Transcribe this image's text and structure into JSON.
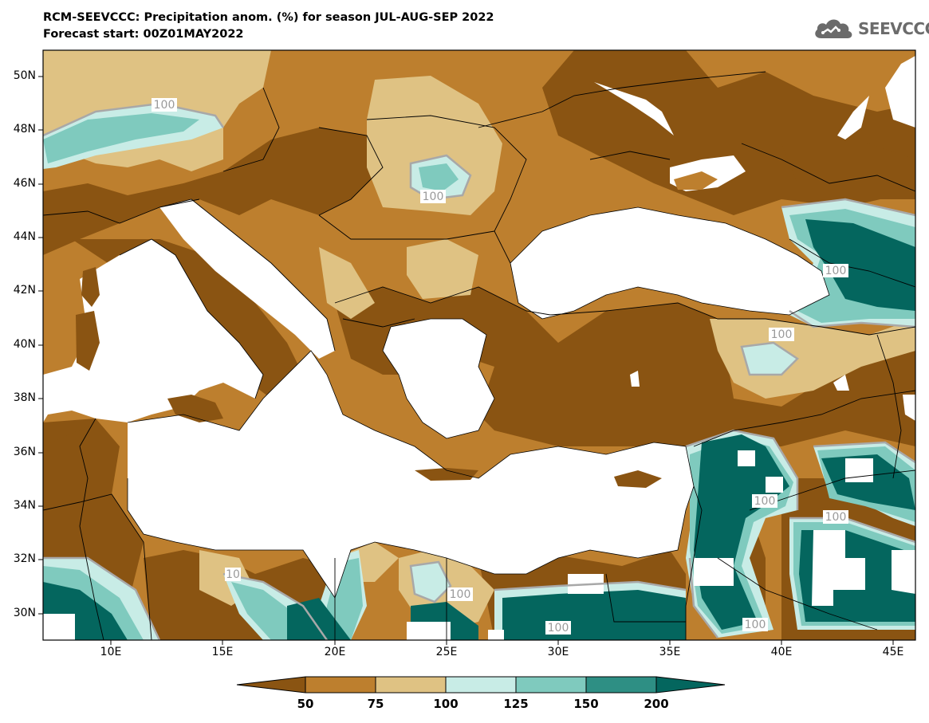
{
  "header": {
    "title_line1": "RCM-SEEVCCC: Precipitation anom. (%) for season JUL-AUG-SEP 2022",
    "title_line2": "Forecast start: 00Z01MAY2022"
  },
  "logo": {
    "text": "SEEVCCC",
    "icon": "cloud-icon"
  },
  "map": {
    "variable": "Precipitation anomaly",
    "units": "%",
    "lat_labels": [
      "50N",
      "48N",
      "46N",
      "44N",
      "42N",
      "40N",
      "38N",
      "36N",
      "34N",
      "32N",
      "30N"
    ],
    "lon_labels": [
      "10E",
      "15E",
      "20E",
      "25E",
      "30E",
      "35E",
      "40E",
      "45E"
    ],
    "contour_labels": [
      "100",
      "100",
      "100",
      "100",
      "100",
      "100",
      "100",
      "100",
      "100",
      "100",
      "10"
    ],
    "colors": {
      "below_50": "#8a5412",
      "50_75": "#bd7f2e",
      "75_100": "#dfc283",
      "100_125": "#c8ece6",
      "125_150": "#7fcabe",
      "150_200": "#2e8f84",
      "above_200": "#04665e",
      "no_data": "#ffffff"
    }
  },
  "colorbar": {
    "labels": [
      "50",
      "75",
      "100",
      "125",
      "150",
      "200"
    ],
    "colors": [
      "#8a5412",
      "#bd7f2e",
      "#dfc283",
      "#c8ece6",
      "#7fcabe",
      "#2e8f84",
      "#04665e"
    ]
  }
}
